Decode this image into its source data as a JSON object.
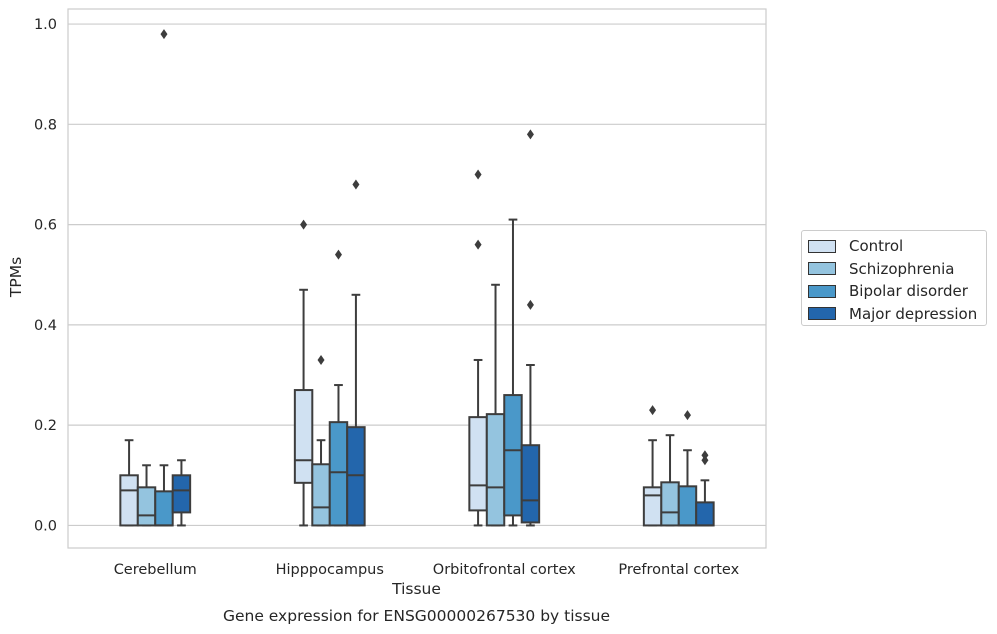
{
  "chart_data": {
    "type": "box",
    "xlabel": "Tissue",
    "ylabel": "TPMs",
    "caption": "Gene expression for ENSG00000267530 by tissue",
    "ylim": [
      -0.045,
      1.03
    ],
    "yticks": [
      "0.0",
      "0.2",
      "0.4",
      "0.6",
      "0.8",
      "1.0"
    ],
    "grid": true,
    "legend_position": "right",
    "categories": [
      "Cerebellum",
      "Hipppocampus",
      "Orbitofrontal cortex",
      "Prefrontal cortex"
    ],
    "series": [
      {
        "name": "Control",
        "color": "#d0e1f2",
        "boxes": [
          {
            "whislo": 0.0,
            "q1": 0.0,
            "med": 0.07,
            "q3": 0.1,
            "whishi": 0.17,
            "fliers": []
          },
          {
            "whislo": 0.0,
            "q1": 0.085,
            "med": 0.13,
            "q3": 0.27,
            "whishi": 0.47,
            "fliers": [
              0.6
            ]
          },
          {
            "whislo": 0.0,
            "q1": 0.03,
            "med": 0.08,
            "q3": 0.216,
            "whishi": 0.33,
            "fliers": [
              0.56,
              0.7
            ]
          },
          {
            "whislo": 0.0,
            "q1": 0.0,
            "med": 0.06,
            "q3": 0.076,
            "whishi": 0.17,
            "fliers": [
              0.23
            ]
          }
        ]
      },
      {
        "name": "Schizophrenia",
        "color": "#94c4df",
        "boxes": [
          {
            "whislo": 0.0,
            "q1": 0.0,
            "med": 0.02,
            "q3": 0.076,
            "whishi": 0.12,
            "fliers": []
          },
          {
            "whislo": 0.0,
            "q1": 0.0,
            "med": 0.036,
            "q3": 0.122,
            "whishi": 0.17,
            "fliers": [
              0.33
            ]
          },
          {
            "whislo": 0.0,
            "q1": 0.0,
            "med": 0.076,
            "q3": 0.222,
            "whishi": 0.48,
            "fliers": []
          },
          {
            "whislo": 0.0,
            "q1": 0.0,
            "med": 0.026,
            "q3": 0.086,
            "whishi": 0.18,
            "fliers": []
          }
        ]
      },
      {
        "name": "Bipolar disorder",
        "color": "#4a98c9",
        "boxes": [
          {
            "whislo": 0.0,
            "q1": 0.0,
            "med": 0.0,
            "q3": 0.068,
            "whishi": 0.12,
            "fliers": [
              0.98
            ]
          },
          {
            "whislo": 0.0,
            "q1": 0.0,
            "med": 0.106,
            "q3": 0.206,
            "whishi": 0.28,
            "fliers": [
              0.54
            ]
          },
          {
            "whislo": 0.0,
            "q1": 0.02,
            "med": 0.15,
            "q3": 0.26,
            "whishi": 0.61,
            "fliers": []
          },
          {
            "whislo": 0.0,
            "q1": 0.0,
            "med": 0.0,
            "q3": 0.078,
            "whishi": 0.15,
            "fliers": [
              0.22
            ]
          }
        ]
      },
      {
        "name": "Major depression",
        "color": "#2366ac",
        "boxes": [
          {
            "whislo": 0.0,
            "q1": 0.026,
            "med": 0.07,
            "q3": 0.1,
            "whishi": 0.13,
            "fliers": []
          },
          {
            "whislo": 0.0,
            "q1": 0.0,
            "med": 0.1,
            "q3": 0.196,
            "whishi": 0.46,
            "fliers": [
              0.68
            ]
          },
          {
            "whislo": 0.0,
            "q1": 0.006,
            "med": 0.05,
            "q3": 0.16,
            "whishi": 0.32,
            "fliers": [
              0.44,
              0.78
            ]
          },
          {
            "whislo": 0.0,
            "q1": 0.0,
            "med": 0.0,
            "q3": 0.046,
            "whishi": 0.09,
            "fliers": [
              0.13,
              0.14
            ]
          }
        ]
      }
    ]
  }
}
